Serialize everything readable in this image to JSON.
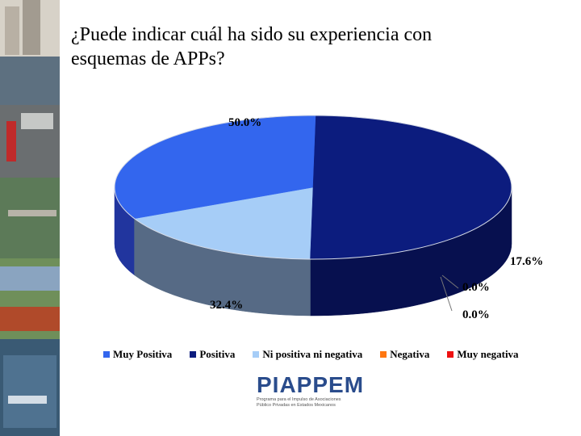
{
  "title_lines": [
    "¿Puede indicar cuál ha sido su experiencia con",
    "esquemas de APPs?"
  ],
  "chart_data": {
    "type": "pie",
    "style": "3d",
    "categories": [
      "Muy Positiva",
      "Positiva",
      "Ni positiva ni negativa",
      "Negativa",
      "Muy negativa"
    ],
    "values": [
      32.4,
      50.0,
      17.6,
      0.0,
      0.0
    ],
    "labels": [
      "32.4%",
      "50.0%",
      "17.6%",
      "0.0%",
      "0.0%"
    ],
    "colors": [
      "#3366ee",
      "#0c1c7e",
      "#a6cdf7",
      "#ff7711",
      "#ee1111"
    ],
    "side_colors": [
      "#21359e",
      "#07104f",
      "#566a85",
      "#b04d0a",
      "#9c0b0b"
    ],
    "legend_position": "bottom"
  },
  "logo": {
    "word": "PIAPPEM",
    "subtitle_lines": [
      "Programa para el Impulso de Asociaciones",
      "Público Privadas en Estados Mexicanos"
    ]
  }
}
